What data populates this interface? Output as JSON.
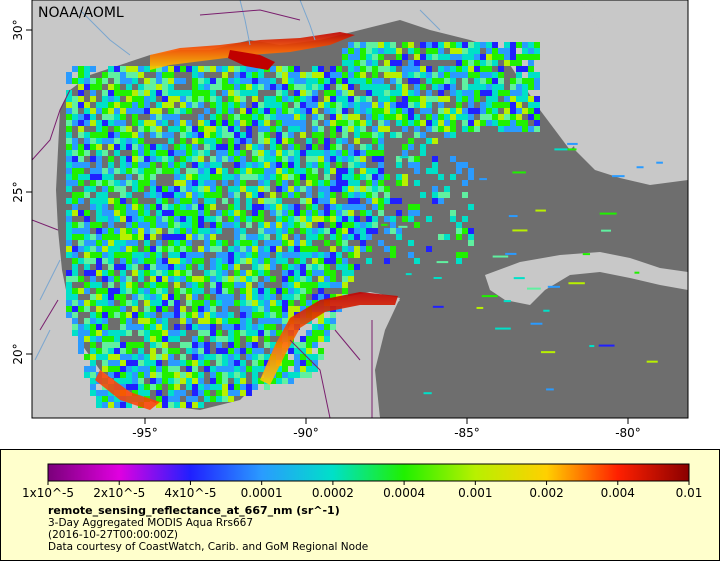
{
  "map": {
    "credit_label": "NOAA/AOML",
    "lon_ticks": [
      {
        "value": -95,
        "label": "-95°"
      },
      {
        "value": -90,
        "label": "-90°"
      },
      {
        "value": -85,
        "label": "-85°"
      },
      {
        "value": -80,
        "label": "-80°"
      }
    ],
    "lat_ticks": [
      {
        "value": 30,
        "label": "30°"
      },
      {
        "value": 25,
        "label": "25°"
      },
      {
        "value": 20,
        "label": "20°"
      }
    ],
    "colors": {
      "land": "#c8c8c8",
      "no_data": "#6e6e6e",
      "border": "#7a1f6e",
      "river": "#7aa6cf"
    }
  },
  "legend": {
    "colorbar_labels": [
      "1x10^-5",
      "2x10^-5",
      "4x10^-5",
      "0.0001",
      "0.0002",
      "0.0004",
      "0.001",
      "0.002",
      "0.004",
      "0.01"
    ],
    "colorbar_colors": [
      "#7a007a",
      "#e000e0",
      "#2020ff",
      "#2a9bff",
      "#00e0c8",
      "#20f000",
      "#b8f000",
      "#ffd000",
      "#ff2000",
      "#8a0000"
    ],
    "variable": "remote_sensing_reflectance_at_667_nm (sr^-1)",
    "product": "3-Day Aggregated MODIS Aqua Rrs667",
    "timestamp": "(2016-10-27T00:00:00Z)",
    "courtesy": "Data courtesy of CoastWatch, Carib. and GoM Regional Node"
  }
}
